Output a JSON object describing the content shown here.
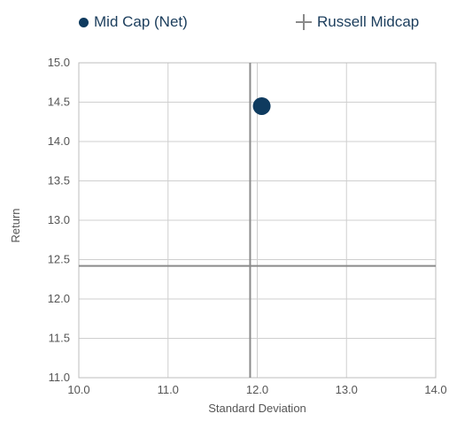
{
  "chart_data": {
    "type": "scatter",
    "xlabel": "Standard Deviation",
    "ylabel": "Return",
    "xlim": [
      10.0,
      14.0
    ],
    "ylim": [
      11.0,
      15.0
    ],
    "x_ticks": [
      "10.0",
      "11.0",
      "12.0",
      "13.0",
      "14.0"
    ],
    "y_ticks": [
      "15.0",
      "14.5",
      "14.0",
      "13.5",
      "13.0",
      "12.5",
      "12.0",
      "11.5",
      "11.0"
    ],
    "grid": true,
    "legend_position": "top",
    "series": [
      {
        "name": "Mid Cap (Net)",
        "marker": "circle",
        "color": "#0f3b5f",
        "x": 12.05,
        "y": 14.45
      },
      {
        "name": "Russell Midcap",
        "marker": "crosshair",
        "color": "#8a8a8a",
        "x": 11.92,
        "y": 12.42
      }
    ]
  }
}
